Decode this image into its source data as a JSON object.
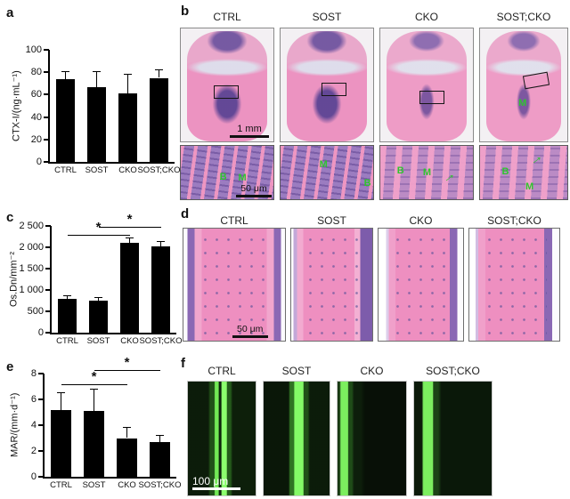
{
  "figure": {
    "panel_labels": {
      "a": "a",
      "b": "b",
      "c": "c",
      "d": "d",
      "e": "e",
      "f": "f"
    },
    "groups": [
      "CTRL",
      "SOST",
      "CKO",
      "SOST;CKO"
    ],
    "colors": {
      "bar": "#000000",
      "annotation_green": "#2fc430",
      "histology_pink": "#ec93c1",
      "marrow_purple": "#6d539f",
      "fluoro_green": "#45e431",
      "background": "#ffffff"
    },
    "icons": {
      "arrow_glyph": "→"
    },
    "b": {
      "scale_top": "1 mm",
      "scale_inset": "50 μm",
      "top_overlay_label": "M",
      "insets": [
        {
          "labels": [
            "B",
            "M"
          ],
          "has_arrow": false
        },
        {
          "labels": [
            "M",
            "B"
          ],
          "has_arrow": false
        },
        {
          "labels": [
            "B",
            "M"
          ],
          "has_arrow": true
        },
        {
          "labels": [
            "B",
            "M"
          ],
          "has_arrow": true
        }
      ]
    },
    "d": {
      "scale": "50 μm"
    },
    "f": {
      "scale": "100 μm"
    }
  },
  "chart_data": [
    {
      "id": "a",
      "type": "bar",
      "title": "",
      "ylabel": "CTX-I/(ng·mL⁻¹)",
      "categories": [
        "CTRL",
        "SOST",
        "CKO",
        "SOST;CKO"
      ],
      "values": [
        74,
        67,
        61,
        75
      ],
      "errors": [
        6,
        13,
        17,
        7
      ],
      "ylim": [
        0,
        100
      ],
      "yticks": [
        0,
        20,
        40,
        60,
        80,
        100
      ],
      "ytick_labels": [
        "0",
        "20",
        "40",
        "60",
        "80",
        "100"
      ],
      "significance": []
    },
    {
      "id": "c",
      "type": "bar",
      "title": "",
      "ylabel": "Os.Dn/mm⁻²",
      "categories": [
        "CTRL",
        "SOST",
        "CKO",
        "SOST;CKO"
      ],
      "values": [
        800,
        740,
        2110,
        2020
      ],
      "errors": [
        60,
        80,
        90,
        110
      ],
      "ylim": [
        0,
        2500
      ],
      "yticks": [
        0,
        500,
        1000,
        1500,
        2000,
        2500
      ],
      "ytick_labels": [
        "0",
        "500",
        "1 000",
        "1 500",
        "2 000",
        "2 500"
      ],
      "significance": [
        {
          "from": 0,
          "to": 2,
          "y": 2290,
          "label": "*"
        },
        {
          "from": 1,
          "to": 3,
          "y": 2480,
          "label": "*"
        }
      ]
    },
    {
      "id": "e",
      "type": "bar",
      "title": "",
      "ylabel": "MAR/(mm·d⁻¹)",
      "categories": [
        "CTRL",
        "SOST",
        "CKO",
        "SOST;CKO"
      ],
      "values": [
        5.2,
        5.1,
        3.0,
        2.7
      ],
      "errors": [
        1.3,
        1.65,
        0.8,
        0.45
      ],
      "ylim": [
        0,
        8
      ],
      "yticks": [
        0,
        2,
        4,
        6,
        8
      ],
      "ytick_labels": [
        "0",
        "2",
        "4",
        "6",
        "8"
      ],
      "significance": [
        {
          "from": 0,
          "to": 2,
          "y": 7.2,
          "label": "*"
        },
        {
          "from": 1,
          "to": 3,
          "y": 8.3,
          "label": "*"
        }
      ]
    }
  ]
}
